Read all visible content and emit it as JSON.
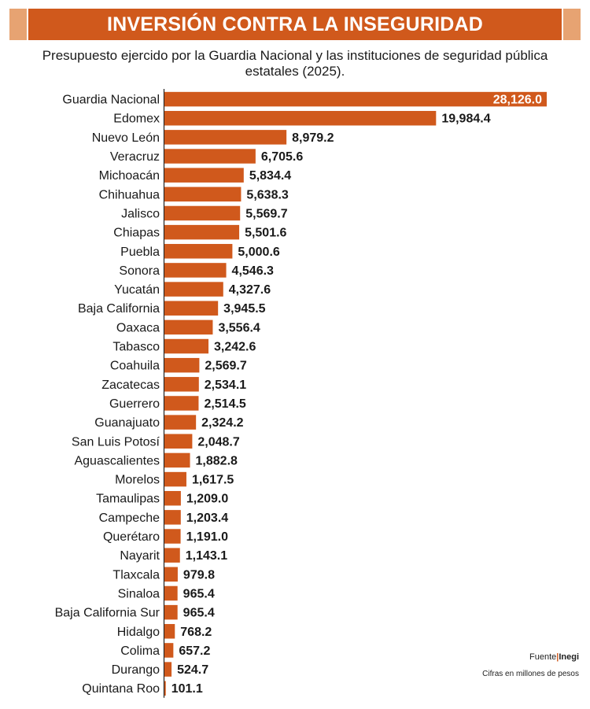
{
  "header": {
    "title": "INVERSIÓN CONTRA LA INSEGURIDAD"
  },
  "subtitle": "Presupuesto ejercido por la Guardia Nacional y las instituciones de seguridad pública estatales (2025).",
  "footer": {
    "source_label": "Fuente",
    "source_separator": "|",
    "source_name": "Inegi",
    "note": "Cifras en millones de pesos"
  },
  "colors": {
    "bar": "#d0591c",
    "banner": "#d0591c",
    "banner_cap": "#e7a372",
    "label": "#1a1a1a",
    "axis": "#222222",
    "inner_label": "#ffffff"
  },
  "chart_data": {
    "type": "bar",
    "orientation": "horizontal",
    "title": "INVERSIÓN CONTRA LA INSEGURIDAD",
    "categories": [
      "Guardia Nacional",
      "Edomex",
      "Nuevo León",
      "Veracruz",
      "Michoacán",
      "Chihuahua",
      "Jalisco",
      "Chiapas",
      "Puebla",
      "Sonora",
      "Yucatán",
      "Baja California",
      "Oaxaca",
      "Tabasco",
      "Coahuila",
      "Zacatecas",
      "Guerrero",
      "Guanajuato",
      "San Luis Potosí",
      "Aguascalientes",
      "Morelos",
      "Tamaulipas",
      "Campeche",
      "Querétaro",
      "Nayarit",
      "Tlaxcala",
      "Sinaloa",
      "Baja California Sur",
      "Hidalgo",
      "Colima",
      "Durango",
      "Quintana Roo"
    ],
    "values": [
      28126.0,
      19984.4,
      8979.2,
      6705.6,
      5834.4,
      5638.3,
      5569.7,
      5501.6,
      5000.6,
      4546.3,
      4327.6,
      3945.5,
      3556.4,
      3242.6,
      2569.7,
      2534.1,
      2514.5,
      2324.2,
      2048.7,
      1882.8,
      1617.5,
      1209.0,
      1203.4,
      1191.0,
      1143.1,
      979.8,
      965.4,
      965.4,
      768.2,
      657.2,
      524.7,
      101.1
    ],
    "value_labels": [
      "28,126.0",
      "19,984.4",
      "8,979.2",
      "6,705.6",
      "5,834.4",
      "5,638.3",
      "5,569.7",
      "5,501.6",
      "5,000.6",
      "4,546.3",
      "4,327.6",
      "3,945.5",
      "3,556.4",
      "3,242.6",
      "2,569.7",
      "2,534.1",
      "2,514.5",
      "2,324.2",
      "2,048.7",
      "1,882.8",
      "1,617.5",
      "1,209.0",
      "1,203.4",
      "1,191.0",
      "1,143.1",
      "979.8",
      "965.4",
      "965.4",
      "768.2",
      "657.2",
      "524.7",
      "101.1"
    ],
    "xlim": [
      0,
      28126.0
    ],
    "grid": false,
    "legend": "none"
  }
}
